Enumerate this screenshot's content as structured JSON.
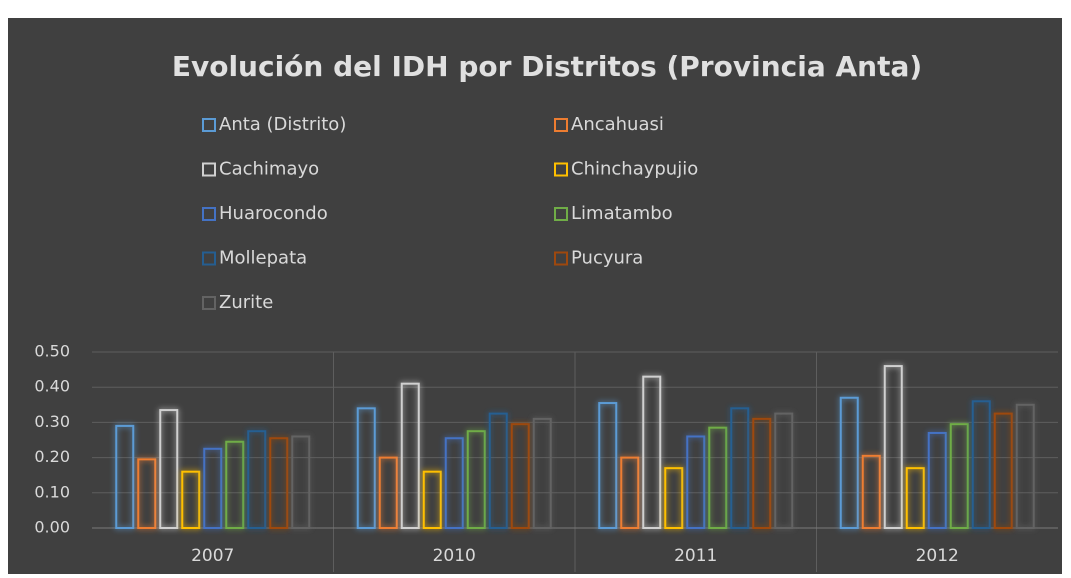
{
  "chart_data": {
    "type": "bar",
    "title": "Evolución del IDH por Distritos (Provincia Anta)",
    "categories": [
      "2007",
      "2010",
      "2011",
      "2012"
    ],
    "series": [
      {
        "name": "Anta (Distrito)",
        "color": "#5b9bd5",
        "values": [
          0.29,
          0.34,
          0.355,
          0.37
        ]
      },
      {
        "name": "Ancahuasi",
        "color": "#ed7d31",
        "values": [
          0.195,
          0.2,
          0.2,
          0.205
        ]
      },
      {
        "name": "Cachimayo",
        "color": "#d0d0d0",
        "values": [
          0.335,
          0.41,
          0.43,
          0.46
        ]
      },
      {
        "name": "Chinchaypujio",
        "color": "#ffc000",
        "values": [
          0.16,
          0.16,
          0.17,
          0.17
        ]
      },
      {
        "name": "Huarocondo",
        "color": "#4472c4",
        "values": [
          0.225,
          0.255,
          0.26,
          0.27
        ]
      },
      {
        "name": "Limatambo",
        "color": "#70ad47",
        "values": [
          0.245,
          0.275,
          0.285,
          0.295
        ]
      },
      {
        "name": "Mollepata",
        "color": "#255e91",
        "values": [
          0.275,
          0.325,
          0.34,
          0.36
        ]
      },
      {
        "name": "Pucyura",
        "color": "#9e480e",
        "values": [
          0.255,
          0.295,
          0.31,
          0.325
        ]
      },
      {
        "name": "Zurite",
        "color": "#636363",
        "values": [
          0.26,
          0.31,
          0.325,
          0.35
        ]
      }
    ],
    "ylim": [
      0,
      0.5
    ],
    "yticks": [
      {
        "value": 0,
        "label": "0.00"
      },
      {
        "value": 0.1,
        "label": "0.10"
      },
      {
        "value": 0.2,
        "label": "0.20"
      },
      {
        "value": 0.3,
        "label": "0.30"
      },
      {
        "value": 0.4,
        "label": "0.40"
      },
      {
        "value": 0.5,
        "label": "0.50"
      }
    ],
    "grid": true,
    "legend": "top"
  }
}
